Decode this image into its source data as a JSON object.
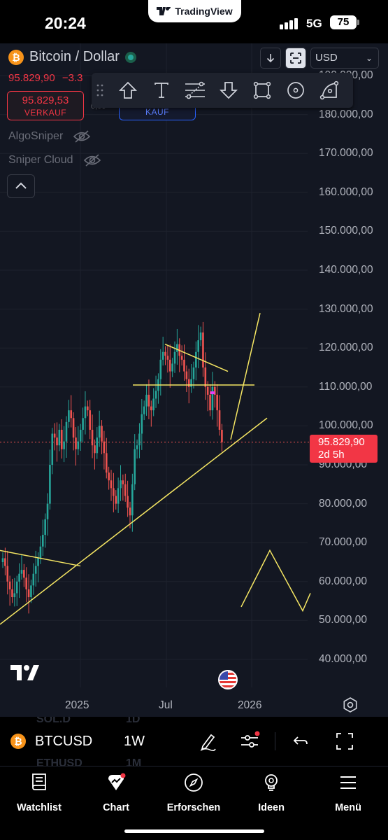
{
  "status_bar": {
    "time": "20:24",
    "app_pill": "TradingView",
    "network": "5G",
    "battery": "75"
  },
  "header": {
    "symbol_title": "Bitcoin / Dollar",
    "last_price": "95.829,90",
    "change": "−3.3",
    "sell_price": "95.829,53",
    "sell_label": "VERKAUF",
    "spread": "0,00",
    "buy_label": "KAUF",
    "currency": "USD"
  },
  "indicators": [
    {
      "name": "AlgoSniper"
    },
    {
      "name": "Sniper Cloud"
    }
  ],
  "price_axis": {
    "labels": [
      "190.000,00",
      "180.000,00",
      "170.000,00",
      "160.000,00",
      "150.000,00",
      "140.000,00",
      "130.000,00",
      "120.000,00",
      "110.000,00",
      "100.000,00",
      "90.000,00",
      "80.000,00",
      "70.000,00",
      "60.000,00",
      "50.000,00",
      "40.000,00"
    ],
    "current_price": "95.829,90",
    "countdown": "2d 5h"
  },
  "time_axis": {
    "labels": [
      "2025",
      "Jul",
      "2026"
    ]
  },
  "colors": {
    "up": "#26a69a",
    "down": "#ef5350",
    "drawing": "#f5e663",
    "accent": "#2962ff"
  },
  "symbol_bar": {
    "symbol": "BTCUSD",
    "interval": "1W",
    "ghost_rows": [
      {
        "symbol": "SOL.D",
        "interval": "1D"
      },
      {
        "symbol": "ETHUSD",
        "interval": "1M"
      }
    ]
  },
  "bottom_nav": [
    {
      "label": "Watchlist",
      "icon": "book-icon"
    },
    {
      "label": "Chart",
      "icon": "chart-icon"
    },
    {
      "label": "Erforschen",
      "icon": "compass-icon"
    },
    {
      "label": "Ideen",
      "icon": "lightbulb-icon"
    },
    {
      "label": "Menü",
      "icon": "menu-icon"
    }
  ],
  "chart_data": {
    "type": "candlestick",
    "timeframe": "1W",
    "x_axis_labels": [
      "2025",
      "Jul",
      "2026"
    ],
    "ylim": [
      38000,
      192000
    ],
    "last_price": 95829.9,
    "highest_high_approx": 126000,
    "lowest_low_visible_approx": 49000,
    "drawings": [
      {
        "type": "trendline",
        "from": [
          "2024-mid",
          50000
        ],
        "to": [
          "2026-03",
          102000
        ]
      },
      {
        "type": "horizontal",
        "price": 110500
      },
      {
        "type": "trendline",
        "from": [
          "2025-07",
          121000
        ],
        "to": [
          "2025-11",
          114000
        ]
      },
      {
        "type": "trendline",
        "from": [
          "2024-04",
          68000
        ],
        "to": [
          "2024-10",
          64000
        ]
      },
      {
        "type": "projection",
        "points": [
          [
            96000
          ],
          [
            129000
          ]
        ]
      },
      {
        "type": "projection",
        "points": [
          [
            54000
          ],
          [
            68000
          ],
          [
            53000
          ],
          [
            57000
          ]
        ]
      }
    ]
  }
}
